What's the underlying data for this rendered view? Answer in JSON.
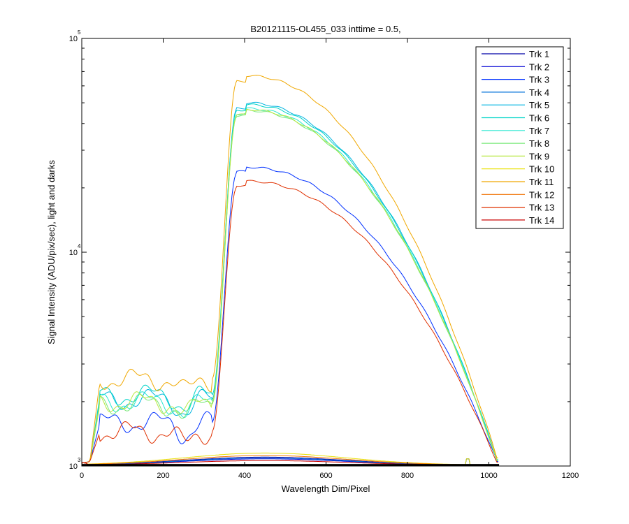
{
  "chart_data": {
    "type": "line",
    "title": "B20121115-OL455_033 inttime = 0.5,",
    "xlabel": "Wavelength Dim/Pixel",
    "ylabel": "Signal Intensity (ADU/pix/sec), light and darks",
    "xlim": [
      0,
      1200
    ],
    "ylim": [
      1000,
      100000
    ],
    "yscale": "log",
    "x_ticks": [
      0,
      200,
      400,
      600,
      800,
      1000,
      1200
    ],
    "x_tick_labels": [
      "0",
      "200",
      "400",
      "600",
      "800",
      "1000",
      "1200"
    ],
    "y_ticks": [
      {
        "value": 1000,
        "base": "10",
        "exp": "3"
      },
      {
        "value": 10000,
        "base": "10",
        "exp": "4"
      },
      {
        "value": 100000,
        "base": "10",
        "exp": "5"
      }
    ],
    "grid": false,
    "legend_position": "top-right",
    "series": [
      {
        "name": "Trk 1",
        "color": "#0000a8",
        "peak": 1100,
        "plateau": 1040,
        "tail": 1010
      },
      {
        "name": "Trk 2",
        "color": "#0000d4",
        "peak": 1080,
        "plateau": 1035,
        "tail": 1010
      },
      {
        "name": "Trk 3",
        "color": "#0030ff",
        "peak": 25000,
        "plateau": 1600,
        "tail": 1050
      },
      {
        "name": "Trk 4",
        "color": "#0070d8",
        "peak": 1090,
        "plateau": 1030,
        "tail": 1010
      },
      {
        "name": "Trk 5",
        "color": "#00b4e0",
        "peak": 50000,
        "plateau": 2050,
        "tail": 1070
      },
      {
        "name": "Trk 6",
        "color": "#00d4c8",
        "peak": 49000,
        "plateau": 2150,
        "tail": 1070
      },
      {
        "name": "Trk 7",
        "color": "#28e8d0",
        "peak": 47000,
        "plateau": 2000,
        "tail": 1060
      },
      {
        "name": "Trk 8",
        "color": "#78e878",
        "peak": 46000,
        "plateau": 1950,
        "tail": 1060
      },
      {
        "name": "Trk 9",
        "color": "#b8e840",
        "peak": 46500,
        "plateau": 2000,
        "tail": 1060
      },
      {
        "name": "Trk 10",
        "color": "#e8e000",
        "peak": 1150,
        "plateau": 1040,
        "tail": 1010
      },
      {
        "name": "Trk 11",
        "color": "#f0a800",
        "peak": 67000,
        "plateau": 2550,
        "tail": 1090
      },
      {
        "name": "Trk 12",
        "color": "#f07000",
        "peak": 1120,
        "plateau": 1040,
        "tail": 1010
      },
      {
        "name": "Trk 13",
        "color": "#e03000",
        "peak": 21500,
        "plateau": 1450,
        "tail": 1040
      },
      {
        "name": "Trk 14",
        "color": "#c80000",
        "peak": 1060,
        "plateau": 1030,
        "tail": 1010
      }
    ]
  }
}
